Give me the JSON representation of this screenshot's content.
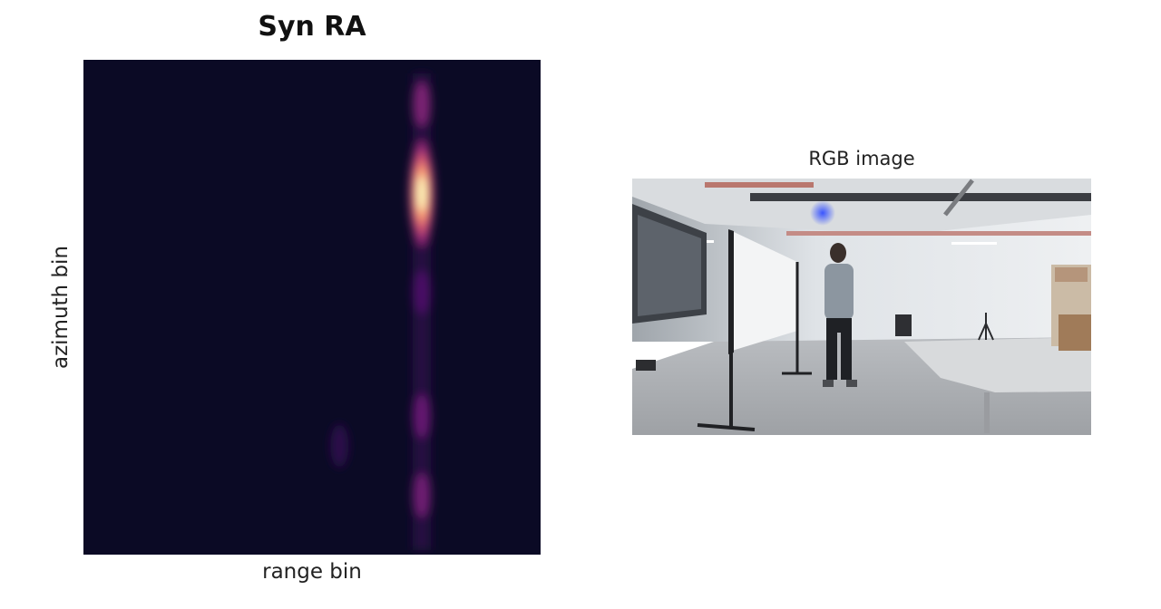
{
  "chart_data": [
    {
      "type": "heatmap",
      "title": "Syn RA",
      "xlabel": "range bin",
      "ylabel": "azimuth bin",
      "colormap": "magma",
      "background_color": "#0b0a25",
      "grid": false,
      "legend": "none",
      "hot_spots": [
        {
          "range_bin_fraction": 0.74,
          "azimuth_bin_fraction": 0.27,
          "intensity": 1.0
        },
        {
          "range_bin_fraction": 0.74,
          "azimuth_bin_fraction": 0.09,
          "intensity": 0.35
        },
        {
          "range_bin_fraction": 0.74,
          "azimuth_bin_fraction": 0.47,
          "intensity": 0.22
        },
        {
          "range_bin_fraction": 0.74,
          "azimuth_bin_fraction": 0.72,
          "intensity": 0.3
        },
        {
          "range_bin_fraction": 0.74,
          "azimuth_bin_fraction": 0.88,
          "intensity": 0.32
        },
        {
          "range_bin_fraction": 0.56,
          "azimuth_bin_fraction": 0.78,
          "intensity": 0.12
        }
      ]
    }
  ],
  "image_panel": {
    "title": "RGB image",
    "content": "indoor-scene-person-walking"
  }
}
